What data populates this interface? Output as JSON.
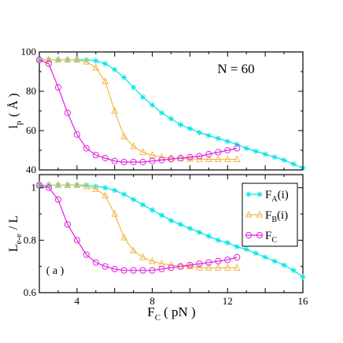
{
  "colors": {
    "FA": "#00e5e5",
    "FB": "#f2b84b",
    "FC": "#e020e0"
  },
  "chart_data": [
    {
      "type": "line",
      "panel": "top",
      "annotation": "N = 60",
      "annotation_color": "#1a8f1a",
      "ylabel_main": "l",
      "ylabel_sub": "p",
      "ylabel_unit": "( Å )",
      "xlim": [
        2,
        16
      ],
      "ylim": [
        40,
        100
      ],
      "yticks": [
        40,
        60,
        80,
        100
      ],
      "xticks": [
        4,
        8,
        12,
        16
      ],
      "grid": false,
      "series": [
        {
          "key": "FA",
          "marker": "star",
          "x": [
            2,
            2.5,
            3,
            3.5,
            4,
            4.5,
            5,
            5.5,
            6,
            6.5,
            7,
            7.5,
            8,
            8.5,
            9,
            9.5,
            10,
            10.5,
            11,
            11.5,
            12,
            12.5,
            13,
            13.5,
            14,
            14.5,
            15,
            15.5,
            16
          ],
          "y": [
            96,
            96,
            96,
            96,
            96,
            96,
            95.5,
            94,
            91,
            87,
            82,
            77,
            73,
            69,
            66,
            63,
            61,
            59,
            57.5,
            56,
            54.5,
            53,
            51,
            49.5,
            48,
            46.5,
            45,
            43,
            41
          ]
        },
        {
          "key": "FB",
          "marker": "triangle",
          "x": [
            2,
            2.5,
            3,
            3.5,
            4,
            4.5,
            5,
            5.5,
            6,
            6.5,
            7,
            7.5,
            8,
            8.5,
            9,
            9.5,
            10,
            10.5,
            11,
            11.5,
            12,
            12.5
          ],
          "y": [
            96,
            96,
            96,
            96,
            96,
            95,
            92,
            85,
            70,
            57,
            52,
            49,
            47.5,
            46.5,
            46,
            45.8,
            45.6,
            45.5,
            45.4,
            45.4,
            45.4,
            45.4
          ]
        },
        {
          "key": "FC",
          "marker": "circle",
          "x": [
            2,
            2.5,
            3,
            3.5,
            4,
            4.5,
            5,
            5.5,
            6,
            6.5,
            7,
            7.5,
            8,
            8.5,
            9,
            9.5,
            10,
            10.5,
            11,
            11.5,
            12,
            12.5
          ],
          "y": [
            96,
            94,
            82,
            69,
            58,
            51,
            47.5,
            46,
            44.5,
            44,
            44,
            44,
            44.5,
            45,
            45.5,
            46,
            46.5,
            47,
            48,
            49,
            50,
            51
          ]
        }
      ]
    },
    {
      "type": "line",
      "panel": "bottom",
      "annotation": "( a )",
      "annotation_color": "#1a8f1a",
      "ylabel_main": "L",
      "ylabel_sub": "e-e",
      "ylabel_unit": "/ L",
      "xlabel_main": "F",
      "xlabel_sub": "C",
      "xlabel_unit": "( pN )",
      "xlim": [
        2,
        16
      ],
      "ylim": [
        0.6,
        1.05
      ],
      "yticks": [
        0.6,
        0.8,
        1
      ],
      "ytick_labels": [
        "0.6",
        "0.8",
        "1"
      ],
      "xticks": [
        4,
        8,
        12,
        16
      ],
      "xtick_labels": [
        "4",
        "8",
        "12",
        "16"
      ],
      "grid": false,
      "legend_position": "top-right",
      "legend": [
        {
          "key": "FA",
          "marker": "star",
          "main": "F",
          "sub": "A",
          "tail": "(i)"
        },
        {
          "key": "FB",
          "marker": "triangle",
          "main": "F",
          "sub": "B",
          "tail": "(i)"
        },
        {
          "key": "FC",
          "marker": "circle",
          "main": "F",
          "sub": "C",
          "tail": ""
        }
      ],
      "series": [
        {
          "key": "FA",
          "marker": "star",
          "x": [
            2,
            2.5,
            3,
            3.5,
            4,
            4.5,
            5,
            5.5,
            6,
            6.5,
            7,
            7.5,
            8,
            8.5,
            9,
            9.5,
            10,
            10.5,
            11,
            11.5,
            12,
            12.5,
            13,
            13.5,
            14,
            14.5,
            15,
            15.5,
            16
          ],
          "y": [
            1.01,
            1.01,
            1.01,
            1.01,
            1.01,
            1.01,
            1.005,
            1,
            0.99,
            0.975,
            0.955,
            0.935,
            0.915,
            0.895,
            0.875,
            0.86,
            0.845,
            0.83,
            0.815,
            0.8,
            0.79,
            0.775,
            0.765,
            0.75,
            0.735,
            0.72,
            0.705,
            0.685,
            0.66
          ]
        },
        {
          "key": "FB",
          "marker": "triangle",
          "x": [
            2,
            2.5,
            3,
            3.5,
            4,
            4.5,
            5,
            5.5,
            6,
            6.5,
            7,
            7.5,
            8,
            8.5,
            9,
            9.5,
            10,
            10.5,
            11,
            11.5,
            12,
            12.5
          ],
          "y": [
            1.01,
            1.01,
            1.01,
            1.01,
            1.01,
            1.005,
            0.995,
            0.97,
            0.9,
            0.81,
            0.76,
            0.735,
            0.72,
            0.71,
            0.705,
            0.7,
            0.7,
            0.695,
            0.695,
            0.695,
            0.695,
            0.695
          ]
        },
        {
          "key": "FC",
          "marker": "circle",
          "x": [
            2,
            2.5,
            3,
            3.5,
            4,
            4.5,
            5,
            5.5,
            6,
            6.5,
            7,
            7.5,
            8,
            8.5,
            9,
            9.5,
            10,
            10.5,
            11,
            11.5,
            12,
            12.5
          ],
          "y": [
            1.01,
            1,
            0.955,
            0.86,
            0.8,
            0.745,
            0.715,
            0.7,
            0.69,
            0.685,
            0.685,
            0.685,
            0.685,
            0.69,
            0.695,
            0.7,
            0.705,
            0.71,
            0.715,
            0.72,
            0.725,
            0.735
          ]
        }
      ]
    }
  ]
}
